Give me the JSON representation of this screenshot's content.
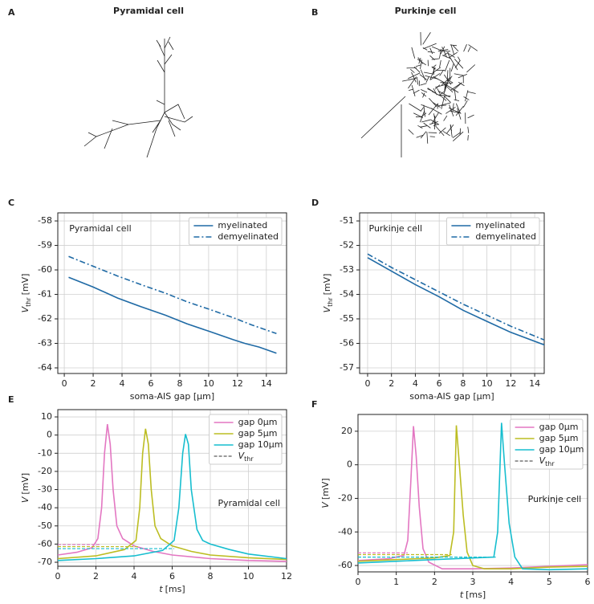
{
  "panels": [
    {
      "letter": "A",
      "title": "Pyramidal cell"
    },
    {
      "letter": "B",
      "title": "Purkinje cell"
    }
  ],
  "chart_data": [
    {
      "type": "line",
      "panel": "C",
      "annotation": "Pyramidal cell",
      "xlabel": "soma-AIS gap [μm]",
      "ylabel": {
        "symbol": "V",
        "subscript": "thr",
        "unit": "[mV]"
      },
      "xlim": [
        -0.45,
        15.4
      ],
      "ylim": [
        -64.23,
        -57.67
      ],
      "xticks": [
        0,
        2,
        4,
        6,
        8,
        10,
        12,
        14
      ],
      "yticks": [
        -64,
        -63,
        -62,
        -61,
        -60,
        -59,
        -58
      ],
      "grid": true,
      "legend": "upper right",
      "series": [
        {
          "name": "myelinated",
          "color": "#1f6aa5",
          "style": "solid",
          "x": [
            0.3,
            2,
            3.7,
            5.3,
            7,
            8.5,
            10,
            11.7,
            12.5,
            13.5,
            14.7
          ],
          "values": [
            -60.3,
            -60.7,
            -61.15,
            -61.5,
            -61.85,
            -62.2,
            -62.5,
            -62.85,
            -63.0,
            -63.15,
            -63.4
          ]
        },
        {
          "name": "demyelinated",
          "color": "#1f6aa5",
          "style": "dashdot",
          "x": [
            0.3,
            2,
            3.7,
            5.3,
            7,
            8.5,
            10,
            11.7,
            13,
            14.7
          ],
          "values": [
            -59.45,
            -59.85,
            -60.25,
            -60.6,
            -60.95,
            -61.3,
            -61.6,
            -61.95,
            -62.25,
            -62.6
          ]
        }
      ]
    },
    {
      "type": "line",
      "panel": "D",
      "annotation": "Purkinje cell",
      "xlabel": "soma-AIS gap [μm]",
      "ylabel": {
        "symbol": "V",
        "subscript": "thr",
        "unit": "[mV]"
      },
      "xlim": [
        -0.67,
        14.8
      ],
      "ylim": [
        -57.23,
        -50.67
      ],
      "xticks": [
        0,
        2,
        4,
        6,
        8,
        10,
        12,
        14
      ],
      "yticks": [
        -57,
        -56,
        -55,
        -54,
        -53,
        -52,
        -51
      ],
      "grid": true,
      "legend": "upper right",
      "series": [
        {
          "name": "myelinated",
          "color": "#1f6aa5",
          "style": "solid",
          "x": [
            0,
            2,
            4,
            6,
            8,
            10,
            12,
            15
          ],
          "values": [
            -52.5,
            -53.05,
            -53.6,
            -54.1,
            -54.65,
            -55.1,
            -55.55,
            -56.1
          ]
        },
        {
          "name": "demyelinated",
          "color": "#1f6aa5",
          "style": "dashdot",
          "x": [
            0,
            2,
            4,
            6,
            8,
            10,
            12,
            15
          ],
          "values": [
            -52.35,
            -52.9,
            -53.4,
            -53.9,
            -54.4,
            -54.85,
            -55.3,
            -55.9
          ]
        }
      ]
    },
    {
      "type": "line",
      "panel": "E",
      "annotation": "Pyramidal cell",
      "xlabel": {
        "symbol": "t",
        "unit": "[ms]"
      },
      "ylabel": {
        "symbol": "V",
        "unit": "[mV]"
      },
      "xlim": [
        0,
        12
      ],
      "ylim": [
        -72.2,
        14
      ],
      "xticks": [
        0,
        2,
        4,
        6,
        8,
        10,
        12
      ],
      "yticks": [
        -70,
        -60,
        -50,
        -40,
        -30,
        -20,
        -10,
        0,
        10
      ],
      "grid": true,
      "legend": "upper right",
      "threshold_legend": {
        "symbol": "V",
        "subscript": "thr"
      },
      "threshold_color": "#333333",
      "series": [
        {
          "name": "gap 0μm",
          "color": "#e377c2",
          "style": "solid",
          "threshold": -60.3,
          "threshold_end": 2.2,
          "x": [
            0,
            1,
            1.8,
            2.1,
            2.3,
            2.45,
            2.6,
            2.75,
            2.9,
            3.1,
            3.4,
            4,
            5,
            6,
            8,
            10,
            12
          ],
          "values": [
            -66,
            -64.5,
            -62,
            -57,
            -40,
            -10,
            6,
            -5,
            -30,
            -50,
            -57,
            -61,
            -64,
            -66,
            -68,
            -69,
            -69.5
          ]
        },
        {
          "name": "gap 5μm",
          "color": "#bcbd22",
          "style": "solid",
          "threshold": -61.4,
          "threshold_end": 4.2,
          "x": [
            0,
            2,
            3.5,
            4.1,
            4.3,
            4.45,
            4.6,
            4.75,
            4.9,
            5.1,
            5.4,
            6,
            7,
            8,
            10,
            12
          ],
          "values": [
            -68,
            -66.5,
            -63,
            -58,
            -40,
            -10,
            3.5,
            -5,
            -30,
            -50,
            -57,
            -61,
            -64,
            -66,
            -67.5,
            -68.5
          ]
        },
        {
          "name": "gap 10μm",
          "color": "#17becf",
          "style": "solid",
          "threshold": -62.5,
          "threshold_end": 6.1,
          "x": [
            0,
            2,
            4,
            5.5,
            6.1,
            6.35,
            6.55,
            6.7,
            6.85,
            7,
            7.3,
            7.6,
            8,
            9,
            10,
            12
          ],
          "values": [
            -69,
            -68,
            -66.5,
            -63.5,
            -58,
            -40,
            -10,
            0.5,
            -5,
            -30,
            -52,
            -58,
            -60,
            -63,
            -65.5,
            -68
          ]
        }
      ]
    },
    {
      "type": "line",
      "panel": "F",
      "annotation": "Purkinje cell",
      "xlabel": {
        "symbol": "t",
        "unit": "[ms]"
      },
      "ylabel": {
        "symbol": "V",
        "unit": "[mV]"
      },
      "xlim": [
        0,
        6
      ],
      "ylim": [
        -63.8,
        30
      ],
      "xticks": [
        0,
        1,
        2,
        3,
        4,
        5,
        6
      ],
      "yticks": [
        -60,
        -40,
        -20,
        0,
        20
      ],
      "grid": true,
      "legend": "upper right",
      "threshold_legend": {
        "symbol": "V",
        "subscript": "thr"
      },
      "threshold_color": "#333333",
      "series": [
        {
          "name": "gap 0μm",
          "color": "#e377c2",
          "style": "solid",
          "threshold": -52.5,
          "threshold_end": 1.3,
          "x": [
            0,
            0.8,
            1.2,
            1.3,
            1.38,
            1.45,
            1.52,
            1.6,
            1.7,
            1.85,
            2.2,
            3,
            4,
            5,
            6
          ],
          "values": [
            -57,
            -56,
            -54,
            -45,
            -10,
            23,
            5,
            -25,
            -50,
            -58,
            -62,
            -62,
            -61.5,
            -60.5,
            -59.5
          ]
        },
        {
          "name": "gap 5μm",
          "color": "#bcbd22",
          "style": "solid",
          "threshold": -53.5,
          "threshold_end": 2.45,
          "x": [
            0,
            1,
            2,
            2.4,
            2.5,
            2.57,
            2.65,
            2.75,
            2.85,
            3,
            3.3,
            4,
            5,
            6
          ],
          "values": [
            -57.5,
            -56.5,
            -55.5,
            -54,
            -40,
            23.5,
            0,
            -30,
            -52,
            -60,
            -62,
            -62,
            -61,
            -60.5
          ]
        },
        {
          "name": "gap 10μm",
          "color": "#17becf",
          "style": "solid",
          "threshold": -55,
          "threshold_end": 3.6,
          "x": [
            0,
            1,
            2,
            3,
            3.55,
            3.65,
            3.75,
            3.83,
            3.95,
            4.1,
            4.3,
            5,
            6
          ],
          "values": [
            -58.5,
            -57.5,
            -56.5,
            -55.5,
            -55,
            -40,
            25,
            0,
            -35,
            -55,
            -62,
            -62.5,
            -62
          ]
        }
      ]
    }
  ]
}
